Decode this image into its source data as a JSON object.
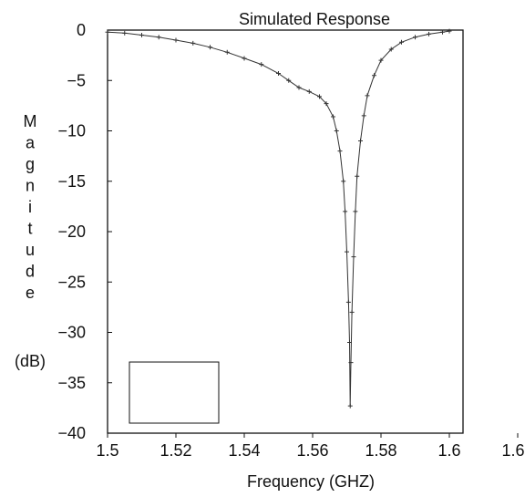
{
  "chart_data": {
    "type": "line",
    "title": "Simulated Response",
    "xlabel": "Frequency (GHZ)",
    "ylabel_letters": [
      "M",
      "a",
      "g",
      "n",
      "i",
      "t",
      "u",
      "d",
      "e"
    ],
    "ylabel_unit": "(dB)",
    "xlim": [
      1.5,
      1.62
    ],
    "ylim": [
      -40,
      0
    ],
    "xticks": [
      "1.5",
      "1.52",
      "1.54",
      "1.56",
      "1.58",
      "1.6",
      "1.62"
    ],
    "xtick_values": [
      1.5,
      1.52,
      1.54,
      1.56,
      1.58,
      1.6,
      1.62
    ],
    "yticks": [
      "0",
      "−5",
      "−10",
      "−15",
      "−20",
      "−25",
      "−30",
      "−35",
      "−40"
    ],
    "ytick_values": [
      0,
      -5,
      -10,
      -15,
      -20,
      -25,
      -30,
      -35,
      -40
    ],
    "grid": false,
    "legend": "empty box, bottom-left",
    "series": [
      {
        "marker": "plus",
        "color": "#333333",
        "x": [
          1.5,
          1.505,
          1.51,
          1.515,
          1.52,
          1.525,
          1.53,
          1.535,
          1.54,
          1.545,
          1.55,
          1.553,
          1.556,
          1.559,
          1.562,
          1.564,
          1.566,
          1.567,
          1.568,
          1.569,
          1.5695,
          1.57,
          1.5705,
          1.5708,
          1.571,
          1.5712,
          1.5715,
          1.572,
          1.5725,
          1.573,
          1.574,
          1.575,
          1.576,
          1.578,
          1.58,
          1.583,
          1.586,
          1.59,
          1.594,
          1.598,
          1.6
        ],
        "y": [
          -0.2,
          -0.3,
          -0.5,
          -0.7,
          -1.0,
          -1.3,
          -1.7,
          -2.2,
          -2.8,
          -3.4,
          -4.3,
          -5.0,
          -5.7,
          -6.1,
          -6.6,
          -7.3,
          -8.6,
          -10.0,
          -12.0,
          -15.0,
          -18.0,
          -22.0,
          -27.0,
          -31.0,
          -37.3,
          -33.0,
          -28.0,
          -22.5,
          -18.0,
          -14.5,
          -11.0,
          -8.5,
          -6.5,
          -4.5,
          -3.0,
          -1.9,
          -1.2,
          -0.7,
          -0.4,
          -0.2,
          -0.1
        ]
      }
    ]
  }
}
